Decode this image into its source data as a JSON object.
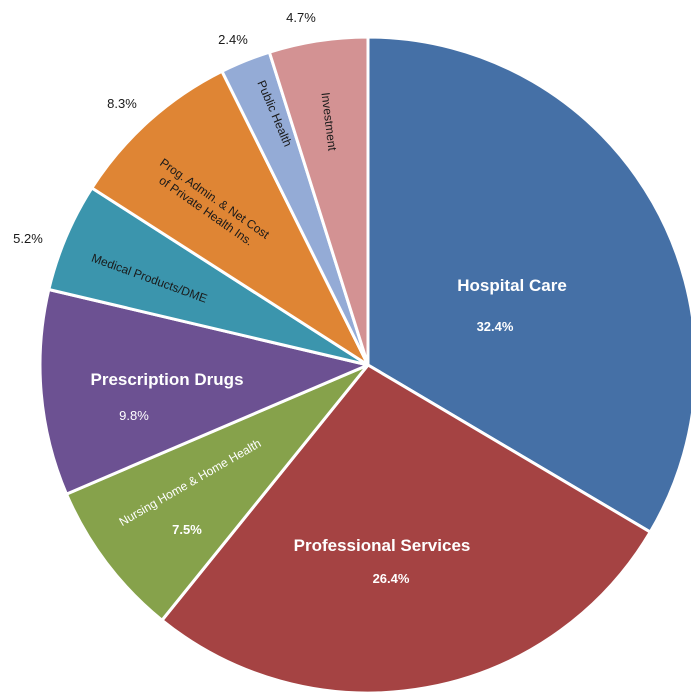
{
  "chart_data": {
    "type": "pie",
    "title": "",
    "series": [
      {
        "name": "",
        "slices": [
          {
            "label": "Hospital Care",
            "value": 32.4,
            "value_label": "32.4%",
            "color": "#4570a6"
          },
          {
            "label": "Professional Services",
            "value": 26.4,
            "value_label": "26.4%",
            "color": "#a54343"
          },
          {
            "label": "Nursing Home & Home Health",
            "value": 7.5,
            "value_label": "7.5%",
            "color": "#86a24b"
          },
          {
            "label": "Prescription Drugs",
            "value": 9.8,
            "value_label": "9.8%",
            "color": "#6c5192"
          },
          {
            "label": "Medical Products/DME",
            "value": 5.2,
            "value_label": "5.2%",
            "color": "#3b95ad"
          },
          {
            "label": "Prog. Admin. & Net Cost of Private Health Ins.",
            "label_lines": [
              "Prog. Admin. & Net Cost",
              "of Private Health Ins."
            ],
            "value": 8.3,
            "value_label": "8.3%",
            "color": "#df8534"
          },
          {
            "label": "Public Health",
            "value": 2.4,
            "value_label": "2.4%",
            "color": "#94abd6"
          },
          {
            "label": "Investment",
            "value": 4.7,
            "value_label": "4.7%",
            "color": "#d39293"
          }
        ]
      }
    ],
    "legend": "none"
  }
}
